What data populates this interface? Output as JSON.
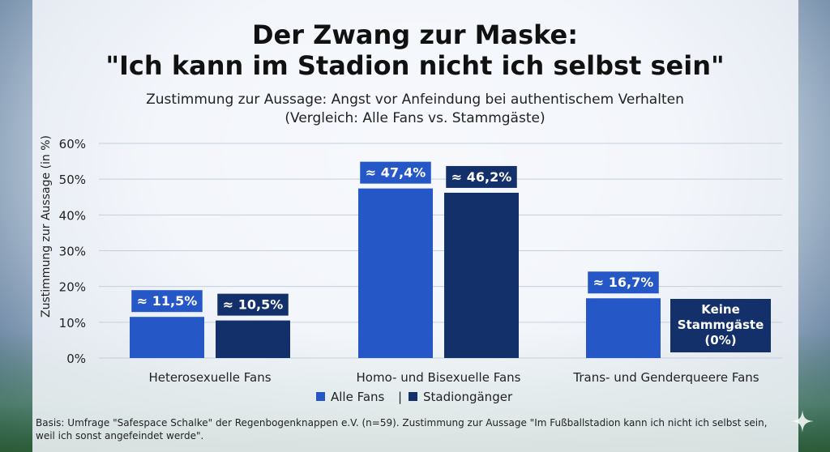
{
  "title_line1": "Der Zwang zur Maske:",
  "title_line2": "\"Ich kann im Stadion nicht ich selbst sein\"",
  "subtitle_line1": "Zustimmung zur Aussage: Angst vor Anfeindung bei authentischem Verhalten",
  "subtitle_line2": "(Vergleich: Alle Fans vs. Stammgäste)",
  "footnote": "Basis: Umfrage \"Safespace Schalke\" der Regenbogenknappen e.V. (n=59). Zustimmung zur Aussage \"Im Fußballstadion kann ich nicht ich selbst sein, weil ich sonst angefeindet werde\".",
  "colors": {
    "all_fans": "#2557c7",
    "stadium": "#14306b",
    "label_bg_all": "#2557c7",
    "label_bg_stadium": "#14306b"
  },
  "chart_data": {
    "type": "bar",
    "title": "Der Zwang zur Maske: \"Ich kann im Stadion nicht ich selbst sein\"",
    "ylabel": "Zustimmung zur Aussage (in %)",
    "xlabel": "",
    "ylim": [
      0,
      60
    ],
    "yticks": [
      0,
      10,
      20,
      30,
      40,
      50,
      60
    ],
    "ytick_labels": [
      "0%",
      "10%",
      "20%",
      "30%",
      "40%",
      "50%",
      "60%"
    ],
    "grid": true,
    "legend_position": "bottom-center",
    "legend_separator": "|",
    "categories": [
      "Heterosexuelle Fans",
      "Homo- und Bisexuelle Fans",
      "Trans- und Genderqueere Fans"
    ],
    "series": [
      {
        "name": "Alle Fans",
        "values": [
          11.5,
          47.4,
          16.7
        ],
        "labels": [
          "≈ 11,5%",
          "≈ 47,4%",
          "≈ 16,7%"
        ]
      },
      {
        "name": "Stadiongänger",
        "values": [
          10.5,
          46.2,
          null
        ],
        "labels": [
          "≈ 10,5%",
          "≈ 46,2%",
          null
        ]
      }
    ],
    "annotation_no_data": [
      "Keine",
      "Stammgäste",
      "(0%)"
    ]
  }
}
